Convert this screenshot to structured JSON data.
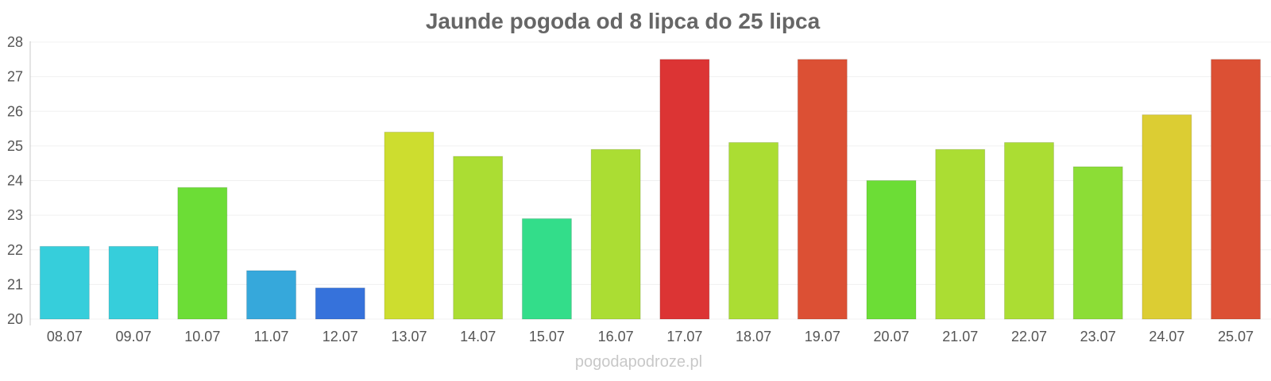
{
  "watermark": "pogodapodroze.pl",
  "chart_data": {
    "type": "bar",
    "title": "Jaunde pogoda od 8 lipca do 25 lipca",
    "xlabel": "",
    "ylabel": "",
    "categories": [
      "08.07",
      "09.07",
      "10.07",
      "11.07",
      "12.07",
      "13.07",
      "14.07",
      "15.07",
      "16.07",
      "17.07",
      "18.07",
      "19.07",
      "20.07",
      "21.07",
      "22.07",
      "23.07",
      "24.07",
      "25.07"
    ],
    "values": [
      22.1,
      22.1,
      23.8,
      21.4,
      20.9,
      25.4,
      24.7,
      22.9,
      24.9,
      27.5,
      25.1,
      27.5,
      24.0,
      24.9,
      25.1,
      24.4,
      25.9,
      27.5
    ],
    "colors": [
      "#36cedb",
      "#36cedb",
      "#6cdd36",
      "#36a8db",
      "#3672db",
      "#cddd2f",
      "#abdd33",
      "#33dd8a",
      "#abdd33",
      "#dc3434",
      "#abdd33",
      "#dc5034",
      "#6cdd36",
      "#abdd33",
      "#abdd33",
      "#8cdd36",
      "#dccd33",
      "#dc5034"
    ],
    "ylim": [
      20,
      28
    ],
    "yticks": [
      "20",
      "21",
      "22",
      "23",
      "24",
      "25",
      "26",
      "27",
      "28"
    ],
    "grid": true,
    "legend": "none"
  }
}
